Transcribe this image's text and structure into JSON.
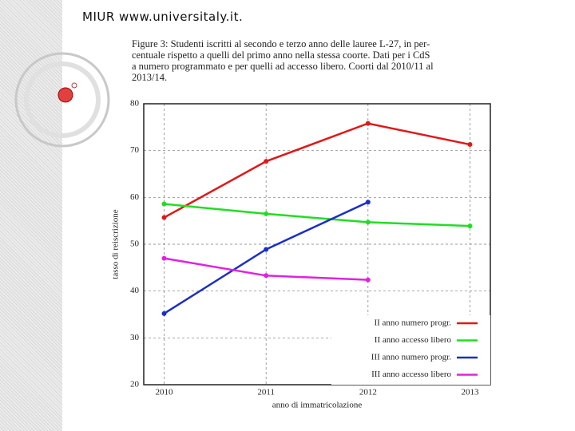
{
  "header": "MIUR www.universitaly.it.",
  "chart_data": {
    "type": "line",
    "caption": [
      "Figure 3: Studenti iscritti al secondo e terzo anno delle lauree L-27, in per-",
      "centuale rispetto a quelli del primo anno nella stessa coorte. Dati per i CdS",
      "a numero programmato e per quelli ad accesso libero. Coorti dal 2010/11 al",
      "2013/14."
    ],
    "x_label": "anno di immatricolazione",
    "y_label": "tasso di reiscrizione",
    "x": [
      2010,
      2011,
      2012,
      2013
    ],
    "series": [
      {
        "name": "II anno numero progr.",
        "color": "#e01818",
        "values": [
          55.7,
          67.7,
          75.8,
          71.3
        ]
      },
      {
        "name": "II anno accesso libero",
        "color": "#22dd22",
        "values": [
          58.6,
          56.5,
          54.7,
          53.9
        ]
      },
      {
        "name": "III anno numero progr.",
        "color": "#1a2ec8",
        "values": [
          35.2,
          48.9,
          59.0,
          null
        ]
      },
      {
        "name": "III anno accesso libero",
        "color": "#e022e0",
        "values": [
          47.0,
          43.3,
          42.4,
          null
        ]
      }
    ],
    "xlim": [
      2009.8,
      2013.2
    ],
    "xticks": [
      2010,
      2011,
      2012,
      2013
    ],
    "ylim": [
      20,
      80
    ],
    "yticks": [
      20,
      30,
      40,
      50,
      60,
      70,
      80
    ],
    "grid": true,
    "legend": "lower right"
  }
}
